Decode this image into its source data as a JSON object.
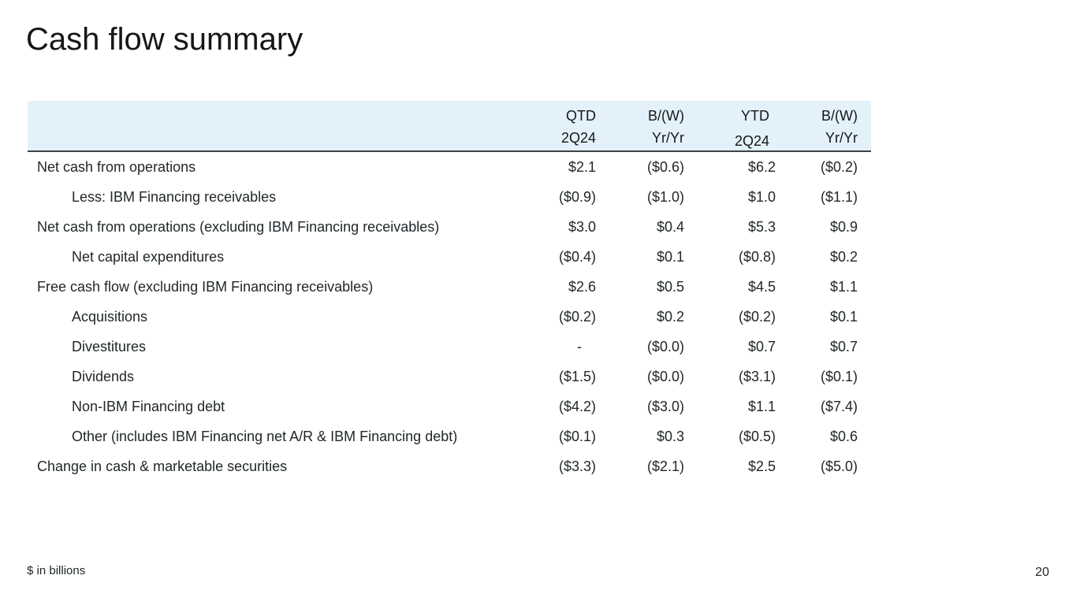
{
  "title": "Cash flow summary",
  "colors": {
    "header_bg": "#e3f1fb",
    "header_border": "#3c4247",
    "title": "#161616",
    "text": "#21272a"
  },
  "table": {
    "headers": [
      {
        "line1": "QTD",
        "line2": "2Q24"
      },
      {
        "line1": "B/(W)",
        "line2": "Yr/Yr"
      },
      {
        "line1": "YTD",
        "line2": "2Q24"
      },
      {
        "line1": "B/(W)",
        "line2": "Yr/Yr"
      }
    ],
    "rows": [
      {
        "label": "Net cash from operations",
        "indent": false,
        "values": [
          "$2.1",
          "($0.6)",
          "$6.2",
          "($0.2)"
        ]
      },
      {
        "label": "Less: IBM Financing receivables",
        "indent": true,
        "values": [
          "($0.9)",
          "($1.0)",
          "$1.0",
          "($1.1)"
        ]
      },
      {
        "label": "Net cash from operations (excluding IBM Financing receivables)",
        "indent": false,
        "values": [
          "$3.0",
          "$0.4",
          "$5.3",
          "$0.9"
        ]
      },
      {
        "label": "Net capital expenditures",
        "indent": true,
        "values": [
          "($0.4)",
          "$0.1",
          "($0.8)",
          "$0.2"
        ]
      },
      {
        "label": "Free cash flow (excluding IBM Financing receivables)",
        "indent": false,
        "values": [
          "$2.6",
          "$0.5",
          "$4.5",
          "$1.1"
        ]
      },
      {
        "label": "Acquisitions",
        "indent": true,
        "values": [
          "($0.2)",
          "$0.2",
          "($0.2)",
          "$0.1"
        ]
      },
      {
        "label": "Divestitures",
        "indent": true,
        "values": [
          "-  ",
          "($0.0)",
          "$0.7",
          "$0.7"
        ]
      },
      {
        "label": "Dividends",
        "indent": true,
        "values": [
          "($1.5)",
          "($0.0)",
          "($3.1)",
          "($0.1)"
        ]
      },
      {
        "label": "Non-IBM Financing debt",
        "indent": true,
        "values": [
          "($4.2)",
          "($3.0)",
          "$1.1",
          "($7.4)"
        ]
      },
      {
        "label": "Other (includes IBM Financing net A/R & IBM Financing debt)",
        "indent": true,
        "values": [
          "($0.1)",
          "$0.3",
          "($0.5)",
          "$0.6"
        ]
      },
      {
        "label": "Change in cash & marketable securities",
        "indent": false,
        "values": [
          "($3.3)",
          "($2.1)",
          "$2.5",
          "($5.0)"
        ]
      }
    ]
  },
  "footer": {
    "note": "$ in billions",
    "page_number": "20"
  }
}
